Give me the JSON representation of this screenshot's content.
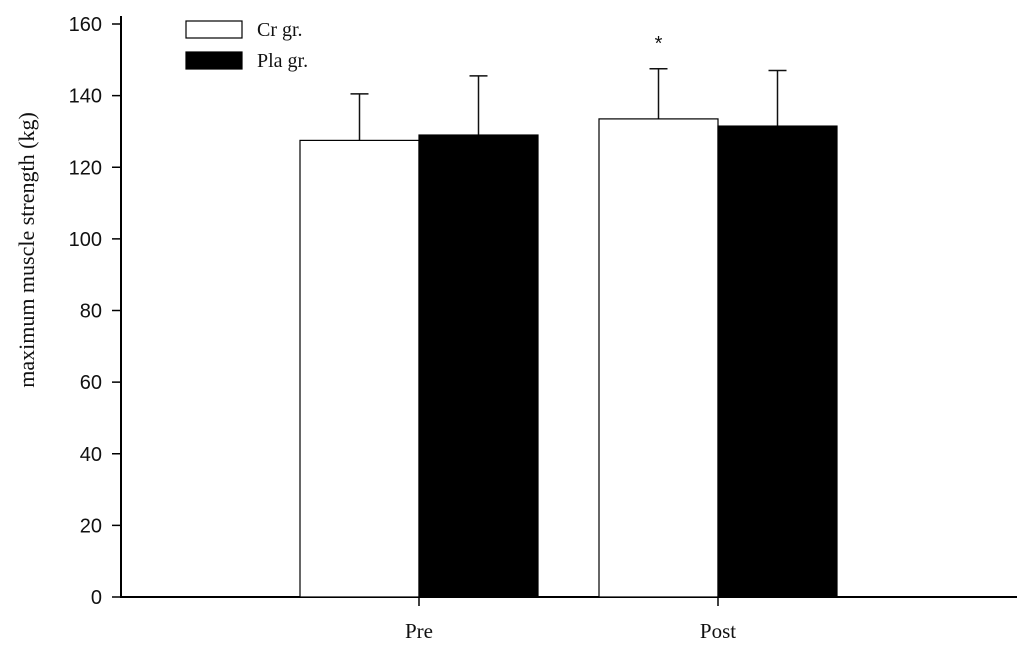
{
  "chart_data": {
    "type": "bar",
    "title": "",
    "xlabel": "",
    "ylabel": "maximum muscle strength (kg)",
    "ylim": [
      0,
      160
    ],
    "yticks": [
      0,
      20,
      40,
      60,
      80,
      100,
      120,
      140,
      160
    ],
    "grid": false,
    "legend_position": "top-left",
    "categories": [
      "Pre",
      "Post"
    ],
    "series": [
      {
        "name": "Cr gr.",
        "fill": "#ffffff",
        "stroke": "#000000",
        "values": [
          127.5,
          133.5
        ],
        "error_upper": [
          13,
          14
        ]
      },
      {
        "name": "Pla gr.",
        "fill": "#000000",
        "stroke": "#000000",
        "values": [
          129,
          131.5
        ],
        "error_upper": [
          16.5,
          15.5
        ]
      }
    ],
    "annotations": [
      {
        "text": "*",
        "category": "Post",
        "series": "Cr gr.",
        "meaning": "significant difference"
      }
    ]
  }
}
